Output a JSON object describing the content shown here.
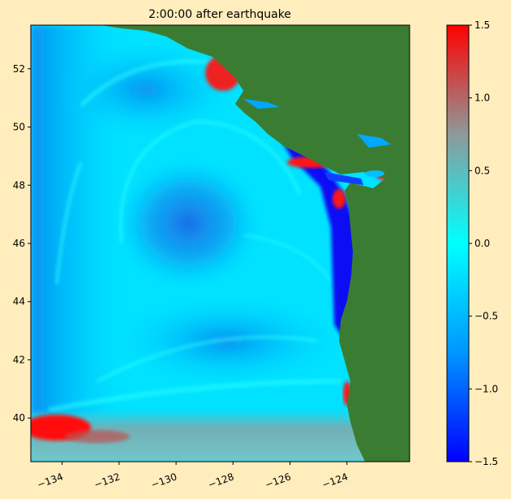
{
  "title": "2:00:00 after earthquake",
  "map": {
    "x_range": [
      -135.1,
      -121.8
    ],
    "y_range": [
      38.5,
      53.5
    ],
    "x_ticks": [
      {
        "value": -134,
        "label": "−134"
      },
      {
        "value": -132,
        "label": "−132"
      },
      {
        "value": -130,
        "label": "−130"
      },
      {
        "value": -128,
        "label": "−128"
      },
      {
        "value": -126,
        "label": "−126"
      },
      {
        "value": -124,
        "label": "−124"
      }
    ],
    "y_ticks": [
      {
        "value": 40,
        "label": "40"
      },
      {
        "value": 42,
        "label": "42"
      },
      {
        "value": 44,
        "label": "44"
      },
      {
        "value": 46,
        "label": "46"
      },
      {
        "value": 48,
        "label": "48"
      },
      {
        "value": 50,
        "label": "50"
      },
      {
        "value": 52,
        "label": "52"
      }
    ],
    "colors": {
      "ocean": "#00e8ff",
      "land": "#3a7d32",
      "positive": "#ff1010",
      "negative": "#0000ff",
      "shelf": "#92a0a0"
    }
  },
  "colorbar": {
    "range": [
      -1.5,
      1.5
    ],
    "ticks": [
      {
        "value": 1.5,
        "label": "1.5"
      },
      {
        "value": 1.0,
        "label": "1.0"
      },
      {
        "value": 0.5,
        "label": "0.5"
      },
      {
        "value": 0.0,
        "label": "0.0"
      },
      {
        "value": -0.5,
        "label": "−0.5"
      },
      {
        "value": -1.0,
        "label": "−1.0"
      },
      {
        "value": -1.5,
        "label": "−1.5"
      }
    ],
    "colormap": [
      "#0000ff",
      "#00a0ff",
      "#00ffff",
      "#8a9a9a",
      "#ff0000"
    ]
  }
}
